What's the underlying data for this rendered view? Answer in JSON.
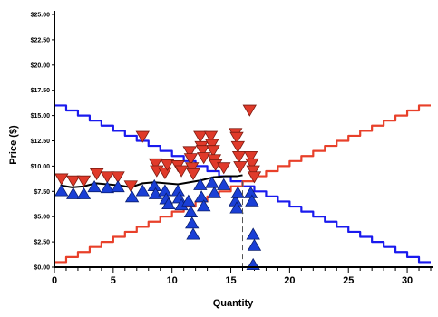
{
  "chart_data": {
    "type": "line",
    "xlabel": "Quantity",
    "ylabel": "Price ($)",
    "xlim": [
      0,
      32
    ],
    "ylim": [
      0,
      25
    ],
    "x_ticks": [
      0,
      5,
      10,
      15,
      20,
      25,
      30
    ],
    "y_ticks": [
      "$0.00",
      "$2.50",
      "$5.00",
      "$7.50",
      "$10.00",
      "$12.50",
      "$15.00",
      "$17.50",
      "$20.00",
      "$22.50",
      "$25.00"
    ],
    "grid": false,
    "colors": {
      "demand": "#1a1aee",
      "supply": "#e8402a",
      "bid": "#1a3fd6",
      "ask": "#e03a2a",
      "avg": "#000000"
    },
    "series": [
      {
        "type": "step",
        "values": [
          [
            0,
            16
          ],
          [
            1,
            15.5
          ],
          [
            2,
            15
          ],
          [
            3,
            14.5
          ],
          [
            4,
            14
          ],
          [
            5,
            13.5
          ],
          [
            6,
            13
          ],
          [
            7,
            12.5
          ],
          [
            8,
            12
          ],
          [
            9,
            11.5
          ],
          [
            10,
            11
          ],
          [
            11,
            10.5
          ],
          [
            12,
            10
          ],
          [
            13,
            9.5
          ],
          [
            14,
            9
          ],
          [
            15,
            8.5
          ],
          [
            16,
            8
          ],
          [
            17,
            7.5
          ],
          [
            18,
            7
          ],
          [
            19,
            6.5
          ],
          [
            20,
            6
          ],
          [
            21,
            5.5
          ],
          [
            22,
            5
          ],
          [
            23,
            4.5
          ],
          [
            24,
            4
          ],
          [
            25,
            3.5
          ],
          [
            26,
            3
          ],
          [
            27,
            2.5
          ],
          [
            28,
            2
          ],
          [
            29,
            1.5
          ],
          [
            30,
            1
          ],
          [
            31,
            0.5
          ],
          [
            32,
            0.5
          ]
        ]
      },
      {
        "type": "step",
        "values": [
          [
            0,
            0.5
          ],
          [
            1,
            1
          ],
          [
            2,
            1.5
          ],
          [
            3,
            2
          ],
          [
            4,
            2.5
          ],
          [
            5,
            3
          ],
          [
            6,
            3.5
          ],
          [
            7,
            4
          ],
          [
            8,
            4.5
          ],
          [
            9,
            5
          ],
          [
            10,
            5.5
          ],
          [
            11,
            6
          ],
          [
            12,
            6.5
          ],
          [
            13,
            7
          ],
          [
            14,
            7.5
          ],
          [
            15,
            8
          ],
          [
            16,
            8.5
          ],
          [
            17,
            9
          ],
          [
            18,
            9.5
          ],
          [
            19,
            10
          ],
          [
            20,
            10.5
          ],
          [
            21,
            11
          ],
          [
            22,
            11.5
          ],
          [
            23,
            12
          ],
          [
            24,
            12.5
          ],
          [
            25,
            13
          ],
          [
            26,
            13.5
          ],
          [
            27,
            14
          ],
          [
            28,
            14.5
          ],
          [
            29,
            15
          ],
          [
            30,
            15.5
          ],
          [
            31,
            16
          ],
          [
            32,
            16
          ]
        ]
      },
      {
        "type": "line",
        "values": [
          [
            0.5,
            8.1
          ],
          [
            1.5,
            7.9
          ],
          [
            2.5,
            8.0
          ],
          [
            3.5,
            8.3
          ],
          [
            4.5,
            8.2
          ],
          [
            5.5,
            8.1
          ],
          [
            6.5,
            7.9
          ],
          [
            7.5,
            8.3
          ],
          [
            8.5,
            8.4
          ],
          [
            9.5,
            8.3
          ],
          [
            10.5,
            8.2
          ],
          [
            11.5,
            8.4
          ],
          [
            12.5,
            8.6
          ],
          [
            13.5,
            8.9
          ],
          [
            14.5,
            9.0
          ],
          [
            15.5,
            9.0
          ],
          [
            16.0,
            9.1
          ]
        ]
      }
    ],
    "asks": [
      [
        0.6,
        8.7
      ],
      [
        1.6,
        8.5
      ],
      [
        2.5,
        8.5
      ],
      [
        3.6,
        9.2
      ],
      [
        4.5,
        8.9
      ],
      [
        5.4,
        8.9
      ],
      [
        6.5,
        8.0
      ],
      [
        7.5,
        12.9
      ],
      [
        8.6,
        10.2
      ],
      [
        8.7,
        9.5
      ],
      [
        9.4,
        9.3
      ],
      [
        9.6,
        10.1
      ],
      [
        10.5,
        10.0
      ],
      [
        10.8,
        9.5
      ],
      [
        11.5,
        11.4
      ],
      [
        11.6,
        10.7
      ],
      [
        11.7,
        9.8
      ],
      [
        11.8,
        9.2
      ],
      [
        12.4,
        12.9
      ],
      [
        12.5,
        11.9
      ],
      [
        12.6,
        11.5
      ],
      [
        12.7,
        10.8
      ],
      [
        13.3,
        12.9
      ],
      [
        13.4,
        12.1
      ],
      [
        13.5,
        11.5
      ],
      [
        13.6,
        10.6
      ],
      [
        13.7,
        10.1
      ],
      [
        14.4,
        9.8
      ],
      [
        15.4,
        13.2
      ],
      [
        15.5,
        12.8
      ],
      [
        15.6,
        11.9
      ],
      [
        15.7,
        10.9
      ],
      [
        15.8,
        9.9
      ],
      [
        16.6,
        15.5
      ],
      [
        16.7,
        10.9
      ],
      [
        16.8,
        10.2
      ],
      [
        16.9,
        9.5
      ],
      [
        17.0,
        8.9
      ]
    ],
    "bids": [
      [
        0.6,
        7.6
      ],
      [
        1.6,
        7.3
      ],
      [
        2.5,
        7.3
      ],
      [
        3.4,
        8.0
      ],
      [
        4.5,
        7.9
      ],
      [
        5.4,
        8.0
      ],
      [
        6.6,
        7.0
      ],
      [
        7.5,
        7.6
      ],
      [
        8.5,
        8.1
      ],
      [
        8.6,
        7.3
      ],
      [
        9.4,
        7.6
      ],
      [
        9.5,
        6.8
      ],
      [
        9.7,
        6.3
      ],
      [
        10.5,
        7.6
      ],
      [
        10.6,
        6.9
      ],
      [
        10.8,
        6.2
      ],
      [
        11.4,
        6.6
      ],
      [
        11.6,
        5.5
      ],
      [
        11.7,
        4.4
      ],
      [
        11.8,
        3.3
      ],
      [
        12.4,
        8.2
      ],
      [
        12.5,
        7.0
      ],
      [
        12.7,
        6.1
      ],
      [
        13.4,
        8.4
      ],
      [
        13.6,
        7.4
      ],
      [
        14.4,
        8.2
      ],
      [
        15.4,
        6.6
      ],
      [
        15.5,
        5.9
      ],
      [
        15.6,
        7.4
      ],
      [
        16.7,
        7.4
      ],
      [
        16.8,
        6.6
      ],
      [
        16.9,
        3.3
      ],
      [
        17.0,
        2.2
      ],
      [
        16.9,
        0.3
      ]
    ]
  }
}
